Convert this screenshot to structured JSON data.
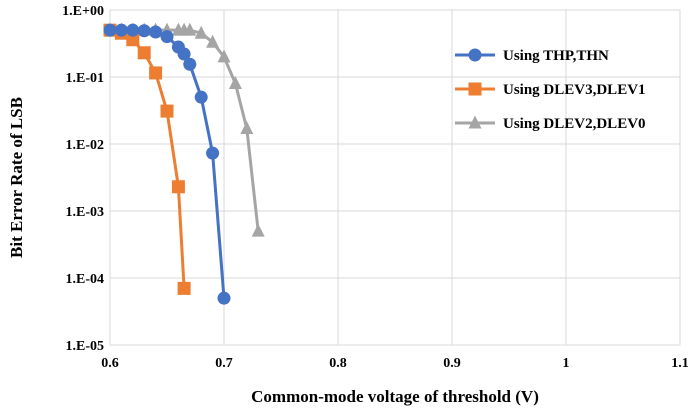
{
  "chart_data": {
    "type": "line",
    "title": "",
    "xlabel": "Common-mode voltage of threshold (V)",
    "ylabel": "Bit Error Rate of LSB",
    "xlim": [
      0.6,
      1.1
    ],
    "ylim": [
      1e-05,
      1
    ],
    "yscale": "log",
    "grid": true,
    "legend_position": "right",
    "x_ticks": [
      0.6,
      0.7,
      0.8,
      0.9,
      1.0,
      1.1
    ],
    "x_tick_labels": [
      "0.6",
      "0.7",
      "0.8",
      "0.9",
      "1",
      "1.1"
    ],
    "y_ticks": [
      1,
      0.1,
      0.01,
      0.001,
      0.0001,
      1e-05
    ],
    "y_tick_labels": [
      "1.E+00",
      "1.E-01",
      "1.E-02",
      "1.E-03",
      "1.E-04",
      "1.E-05"
    ],
    "series": [
      {
        "name": "Using THP,THN",
        "color": "#4472C4",
        "marker": "circle",
        "x": [
          0.6,
          0.61,
          0.62,
          0.63,
          0.64,
          0.65,
          0.66,
          0.665,
          0.67,
          0.68,
          0.69,
          0.7
        ],
        "y": [
          0.5,
          0.5,
          0.5,
          0.49,
          0.47,
          0.4,
          0.28,
          0.22,
          0.155,
          0.05,
          0.0073,
          5e-05
        ]
      },
      {
        "name": "Using DLEV3,DLEV1",
        "color": "#ED7D31",
        "marker": "square",
        "x": [
          0.6,
          0.61,
          0.62,
          0.63,
          0.64,
          0.65,
          0.66,
          0.665
        ],
        "y": [
          0.5,
          0.45,
          0.36,
          0.23,
          0.115,
          0.031,
          0.0023,
          7e-05
        ]
      },
      {
        "name": "Using DLEV2,DLEV0",
        "color": "#A5A5A5",
        "marker": "triangle",
        "x": [
          0.6,
          0.61,
          0.62,
          0.63,
          0.64,
          0.65,
          0.66,
          0.665,
          0.67,
          0.68,
          0.69,
          0.7,
          0.71,
          0.72,
          0.73
        ],
        "y": [
          0.5,
          0.5,
          0.5,
          0.5,
          0.5,
          0.5,
          0.5,
          0.5,
          0.5,
          0.45,
          0.33,
          0.2,
          0.08,
          0.017,
          0.0005
        ]
      }
    ]
  }
}
